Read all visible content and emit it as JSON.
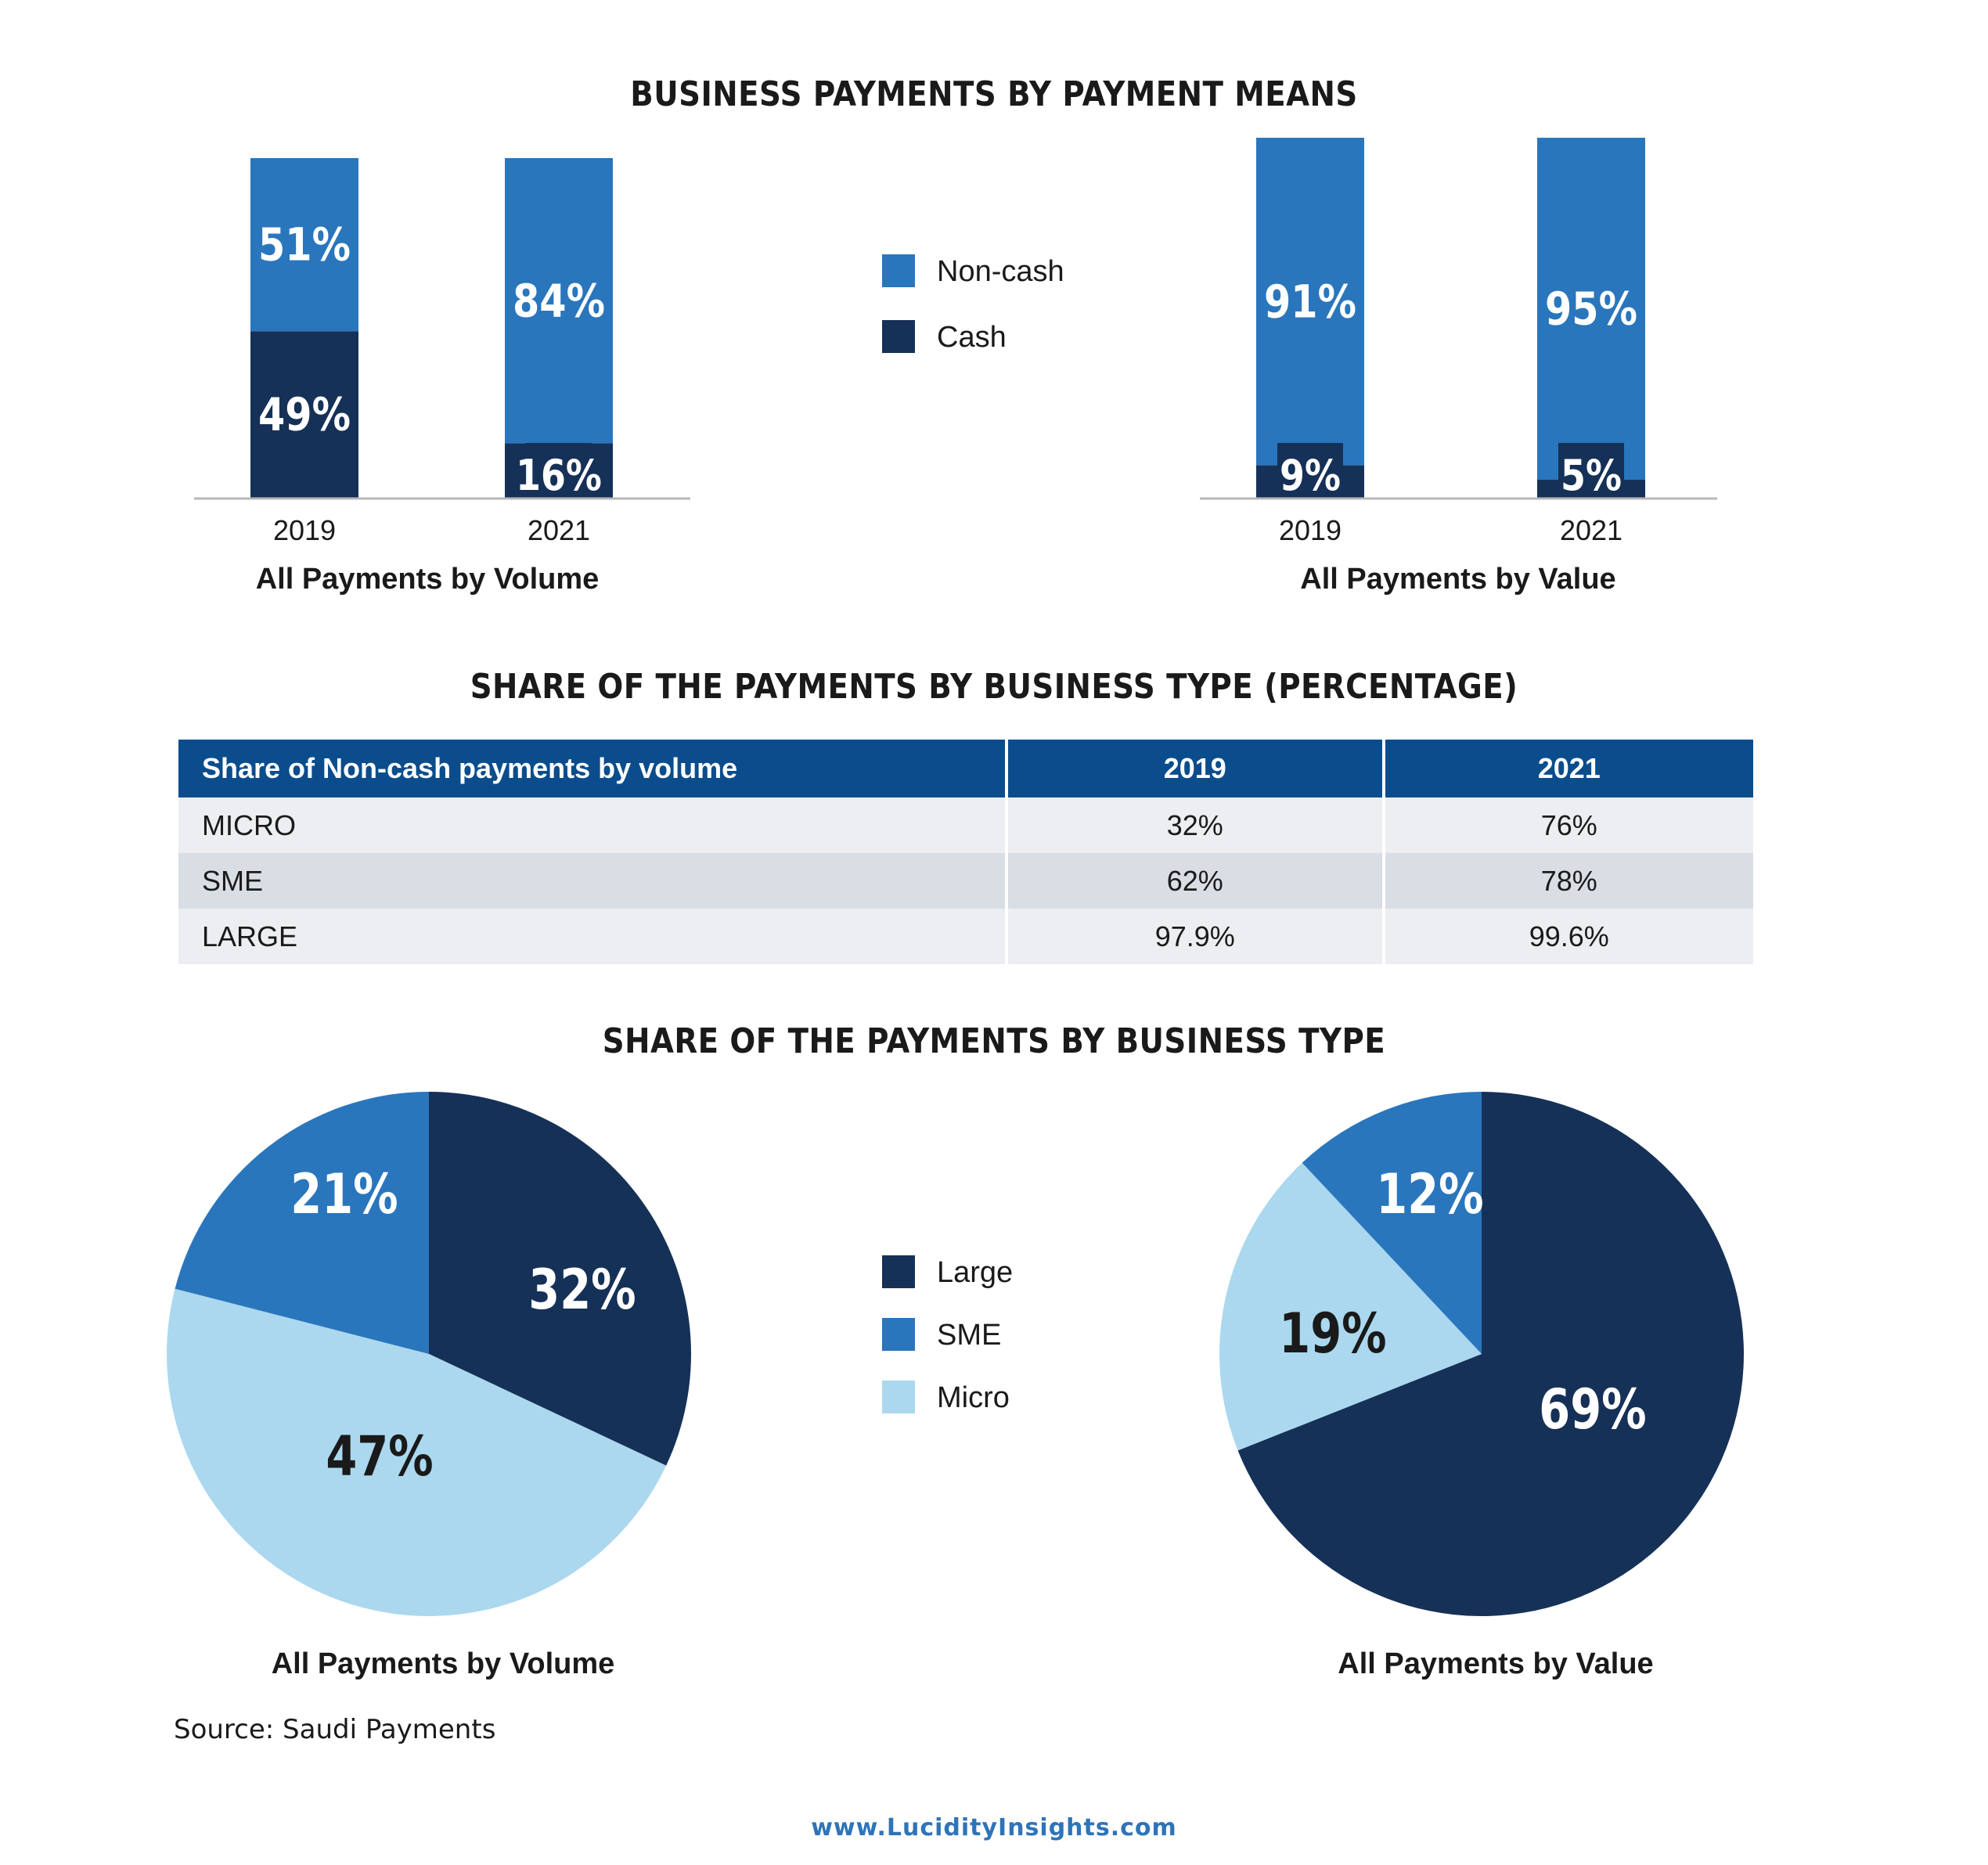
{
  "headings": {
    "payment_means": "BUSINESS PAYMENTS BY PAYMENT MEANS",
    "table_title": "SHARE OF THE PAYMENTS BY BUSINESS TYPE (PERCENTAGE)",
    "pie_title": "SHARE OF THE PAYMENTS BY BUSINESS TYPE"
  },
  "colors": {
    "noncash": "#2a76bd",
    "cash": "#163157",
    "large": "#163157",
    "sme": "#2a76bd",
    "micro": "#abd8ef",
    "header_blue": "#0b4d8c"
  },
  "legend_bars": [
    {
      "label": "Non-cash",
      "color": "#2a76bd"
    },
    {
      "label": "Cash",
      "color": "#163157"
    }
  ],
  "legend_pies": [
    {
      "label": "Large",
      "color": "#163157"
    },
    {
      "label": "SME",
      "color": "#2a76bd"
    },
    {
      "label": "Micro",
      "color": "#abd8ef"
    }
  ],
  "chart_data": [
    {
      "type": "bar",
      "stacked": true,
      "caption": "All Payments by Volume",
      "categories": [
        "2019",
        "2021"
      ],
      "series": [
        {
          "name": "Cash",
          "values": [
            49,
            16
          ],
          "labels": [
            "49%",
            "16%"
          ]
        },
        {
          "name": "Non-cash",
          "values": [
            51,
            84
          ],
          "labels": [
            "51%",
            "84%"
          ]
        }
      ],
      "ylim": [
        0,
        100
      ]
    },
    {
      "type": "bar",
      "stacked": true,
      "caption": "All Payments by Value",
      "categories": [
        "2019",
        "2021"
      ],
      "series": [
        {
          "name": "Cash",
          "values": [
            9,
            5
          ],
          "labels": [
            "9%",
            "5%"
          ]
        },
        {
          "name": "Non-cash",
          "values": [
            91,
            95
          ],
          "labels": [
            "91%",
            "95%"
          ]
        }
      ],
      "ylim": [
        0,
        100
      ]
    },
    {
      "type": "table",
      "columns": [
        "Share of Non-cash payments by volume",
        "2019",
        "2021"
      ],
      "rows": [
        [
          "MICRO",
          "32%",
          "76%"
        ],
        [
          "SME",
          "62%",
          "78%"
        ],
        [
          "LARGE",
          "97.9%",
          "99.6%"
        ]
      ]
    },
    {
      "type": "pie",
      "caption": "All Payments by Volume",
      "slices": [
        {
          "name": "Large",
          "value": 32,
          "label": "32%"
        },
        {
          "name": "Micro",
          "value": 47,
          "label": "47%"
        },
        {
          "name": "SME",
          "value": 21,
          "label": "21%"
        }
      ]
    },
    {
      "type": "pie",
      "caption": "All Payments by Value",
      "slices": [
        {
          "name": "Large",
          "value": 69,
          "label": "69%"
        },
        {
          "name": "Micro",
          "value": 19,
          "label": "19%"
        },
        {
          "name": "SME",
          "value": 12,
          "label": "12%"
        }
      ]
    }
  ],
  "source": "Source: Saudi Payments",
  "footer": "www.LucidityInsights.com"
}
